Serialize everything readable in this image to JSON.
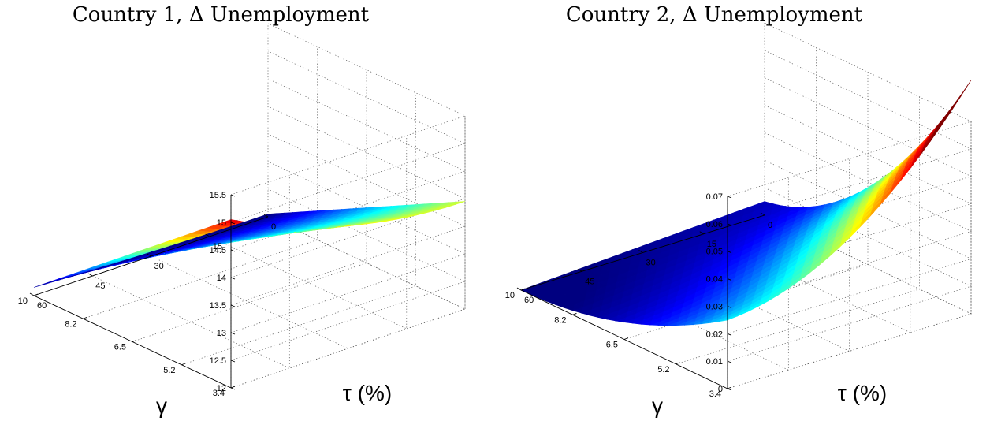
{
  "chart_data": [
    {
      "type": "surface",
      "title": "Country 1, Δ Unemployment",
      "xlabel": "γ",
      "ylabel": "τ (%)",
      "gamma_ticks": [
        "3.4",
        "5.2",
        "6.5",
        "8.2",
        "10"
      ],
      "tau_ticks": [
        "0",
        "15",
        "30",
        "45",
        "60"
      ],
      "z_ticks": [
        "12",
        "12.5",
        "13",
        "13.5",
        "14",
        "14.5",
        "15",
        "15.5"
      ],
      "gamma_range": [
        3.4,
        10
      ],
      "tau_range": [
        0,
        60
      ],
      "zlim": [
        12,
        15.5
      ],
      "grid": true,
      "colormap": "jet",
      "corners": {
        "gamma_3.4_tau_60": 15.05,
        "gamma_3.4_tau_0": 13.95,
        "gamma_10_tau_60": 12.15,
        "gamma_10_tau_0": 12.05
      },
      "surface_shape": "concave in tau"
    },
    {
      "type": "surface",
      "title": "Country 2, Δ Unemployment",
      "xlabel": "γ",
      "ylabel": "τ (%)",
      "gamma_ticks": [
        "3.4",
        "5.2",
        "6.5",
        "8.2",
        "10"
      ],
      "tau_ticks": [
        "0",
        "15",
        "30",
        "45",
        "60"
      ],
      "z_ticks": [
        "0",
        "0.01",
        "0.02",
        "0.03",
        "0.04",
        "0.05",
        "0.06",
        "0.07"
      ],
      "gamma_range": [
        3.4,
        10
      ],
      "tau_range": [
        0,
        60
      ],
      "zlim": [
        0,
        0.07
      ],
      "grid": true,
      "colormap": "jet",
      "corners": {
        "gamma_3.4_tau_60": 0.025,
        "gamma_3.4_tau_0": 0.073,
        "gamma_10_tau_60": 0.0,
        "gamma_10_tau_0": 0.005
      },
      "surface_shape": "convex bowl"
    }
  ]
}
